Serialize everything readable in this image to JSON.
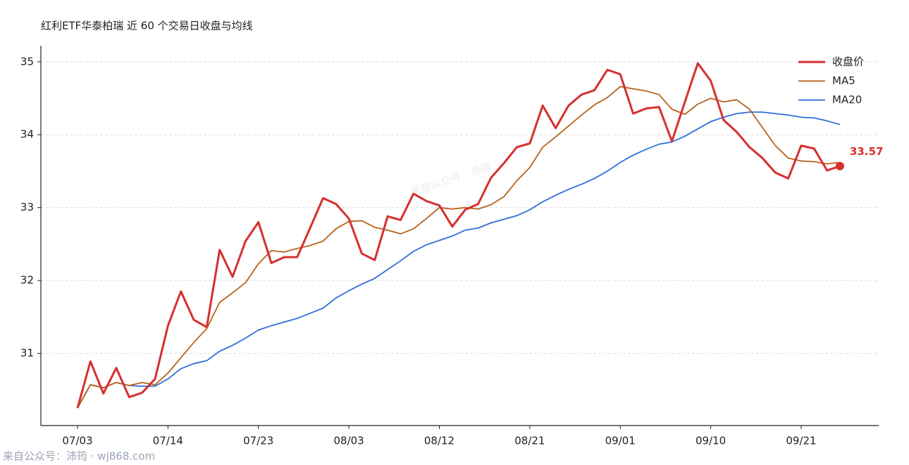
{
  "chart_data": {
    "type": "line",
    "title": "红利ETF华泰柏瑞 近 60 个交易日收盘与均线",
    "watermark": "来自公众号：沛筠",
    "footer": "来自公众号：沛筠 · wj868.com",
    "categories": [
      "07/03",
      null,
      null,
      null,
      null,
      null,
      null,
      "07/14",
      null,
      null,
      null,
      null,
      null,
      null,
      "07/23",
      null,
      null,
      null,
      null,
      null,
      null,
      "08/03",
      null,
      null,
      null,
      null,
      null,
      null,
      "08/12",
      null,
      null,
      null,
      null,
      null,
      null,
      "08/21",
      null,
      null,
      null,
      null,
      null,
      null,
      "09/01",
      null,
      null,
      null,
      null,
      null,
      null,
      "09/10",
      null,
      null,
      null,
      null,
      null,
      null,
      "09/21",
      null,
      null,
      null
    ],
    "series": [
      {
        "name": "收盘价",
        "color": "#d62f2f",
        "values": [
          30.25,
          30.89,
          30.45,
          30.8,
          30.4,
          30.46,
          30.65,
          31.38,
          31.85,
          31.46,
          31.36,
          32.42,
          32.05,
          32.54,
          32.8,
          32.24,
          32.32,
          32.32,
          32.72,
          33.13,
          33.05,
          32.85,
          32.37,
          32.28,
          32.88,
          32.83,
          33.19,
          33.09,
          33.03,
          32.74,
          32.97,
          33.05,
          33.41,
          33.61,
          33.83,
          33.88,
          34.4,
          34.09,
          34.4,
          34.55,
          34.61,
          34.89,
          34.83,
          34.29,
          34.36,
          34.38,
          33.91,
          34.45,
          34.98,
          34.74,
          34.2,
          34.04,
          33.83,
          33.68,
          33.48,
          33.4,
          33.85,
          33.81,
          33.51,
          33.57
        ]
      },
      {
        "name": "MA5",
        "color": "#b8621b",
        "values": [
          30.25,
          30.57,
          30.53,
          30.6,
          30.56,
          30.6,
          30.57,
          30.73,
          30.94,
          31.15,
          31.34,
          31.7,
          31.83,
          31.97,
          32.23,
          32.41,
          32.39,
          32.44,
          32.48,
          32.54,
          32.71,
          32.81,
          32.82,
          32.73,
          32.69,
          32.64,
          32.71,
          32.85,
          33.0,
          32.98,
          33.0,
          32.98,
          33.04,
          33.15,
          33.37,
          33.55,
          33.83,
          33.97,
          34.12,
          34.27,
          34.41,
          34.51,
          34.66,
          34.63,
          34.6,
          34.55,
          34.35,
          34.28,
          34.42,
          34.5,
          34.45,
          34.48,
          34.35,
          34.1,
          33.85,
          33.68,
          33.64,
          33.63,
          33.6,
          33.62
        ]
      },
      {
        "name": "MA20",
        "color": "#2f6fdb",
        "values": [
          30.25,
          30.57,
          30.53,
          30.6,
          30.56,
          30.55,
          30.55,
          30.65,
          30.79,
          30.86,
          30.9,
          31.03,
          31.11,
          31.21,
          31.32,
          31.38,
          31.43,
          31.48,
          31.55,
          31.62,
          31.76,
          31.86,
          31.95,
          32.03,
          32.15,
          32.27,
          32.4,
          32.49,
          32.55,
          32.61,
          32.69,
          32.72,
          32.79,
          32.84,
          32.89,
          32.97,
          33.08,
          33.17,
          33.25,
          33.32,
          33.4,
          33.5,
          33.62,
          33.72,
          33.8,
          33.87,
          33.9,
          33.98,
          34.08,
          34.18,
          34.24,
          34.29,
          34.31,
          34.31,
          34.29,
          34.27,
          34.24,
          34.23,
          34.19,
          34.14
        ]
      }
    ],
    "ylim": [
      30.01,
      35.22
    ],
    "yticks": [
      31,
      32,
      33,
      34,
      35
    ],
    "grid": true,
    "legend": "upper right"
  }
}
